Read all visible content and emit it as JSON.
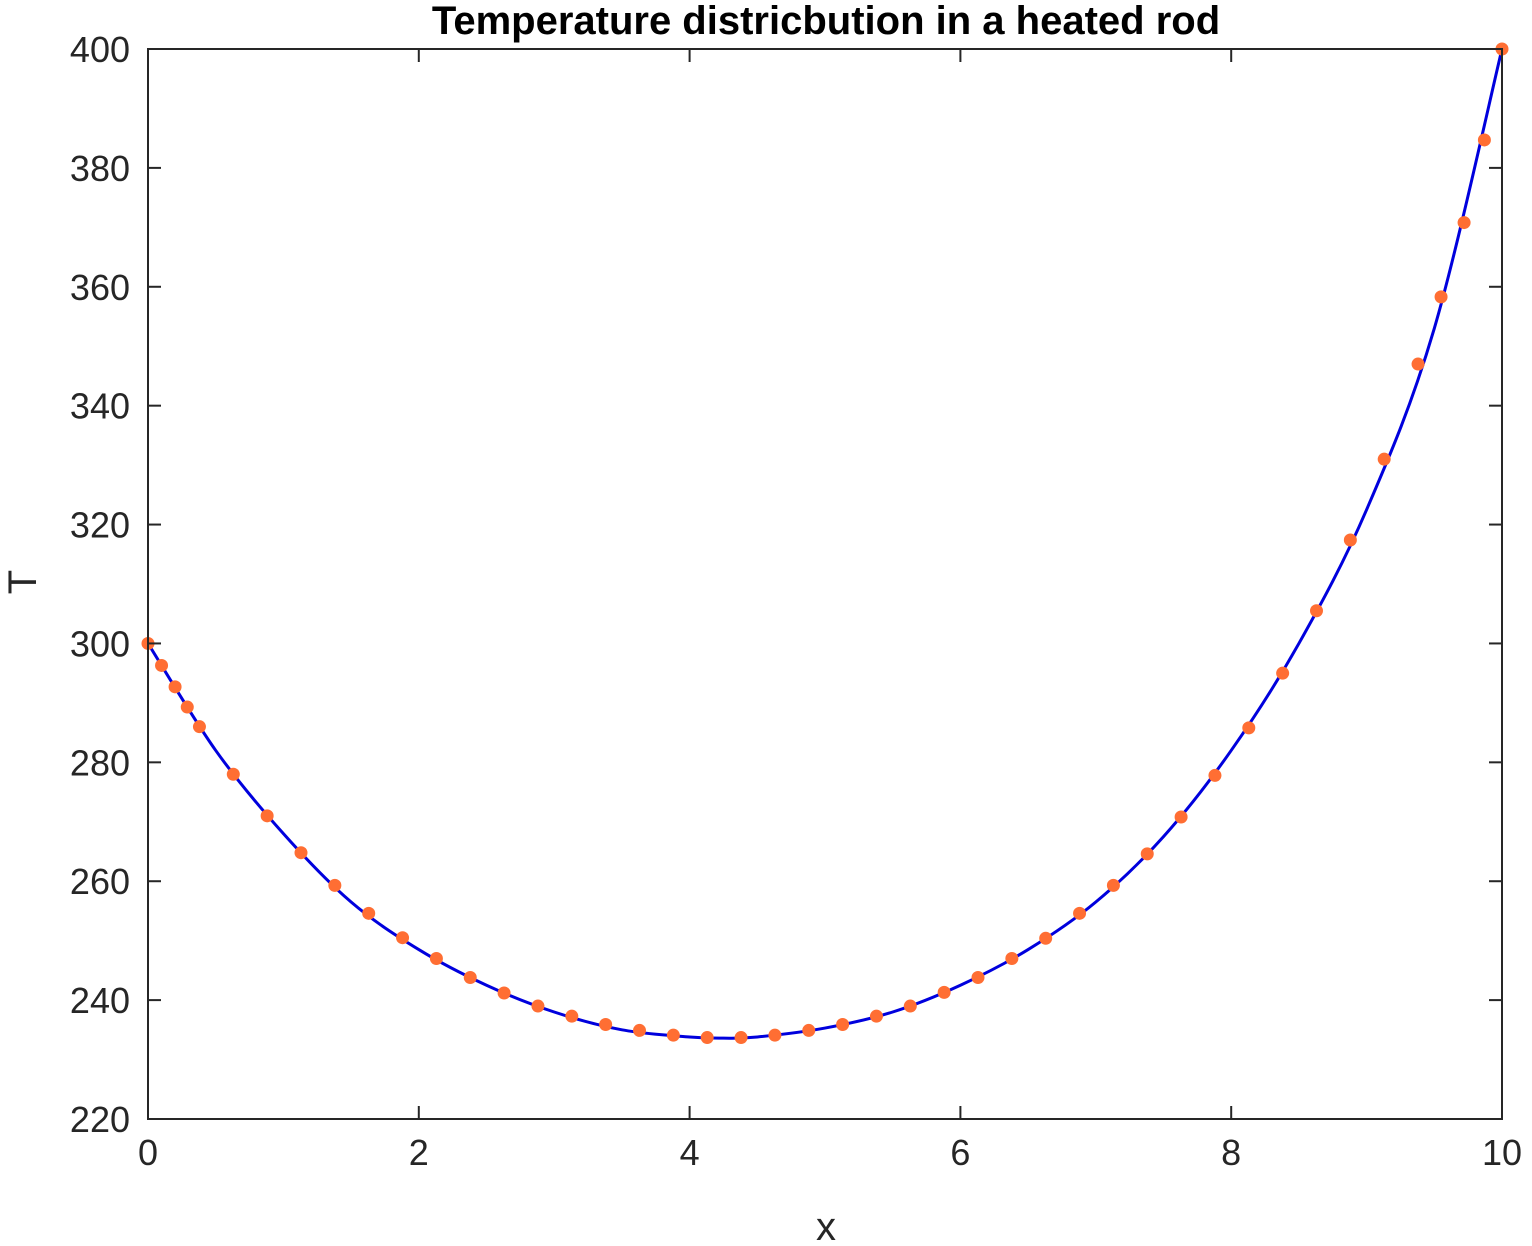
{
  "chart_data": {
    "type": "line",
    "title": "Temperature districbution in a heated rod",
    "xlabel": "x",
    "ylabel": "T",
    "xlim": [
      0,
      10
    ],
    "ylim": [
      220,
      400
    ],
    "xticks": [
      0,
      2,
      4,
      6,
      8,
      10
    ],
    "yticks": [
      220,
      240,
      260,
      280,
      300,
      320,
      340,
      360,
      380,
      400
    ],
    "grid": false,
    "colors": {
      "line": "#0000dd",
      "markers": "#ff6e33",
      "axes": "#262626"
    },
    "series": [
      {
        "mode": "line",
        "x": [
          0,
          0.5,
          1,
          1.5,
          2,
          2.5,
          3,
          3.5,
          4,
          4.25,
          4.5,
          5,
          5.5,
          6,
          6.5,
          7,
          7.5,
          8,
          8.5,
          9,
          9.5,
          10
        ],
        "y": [
          300,
          282,
          268,
          256.5,
          248.5,
          242.5,
          238,
          235,
          233.8,
          233.6,
          233.8,
          235.3,
          238,
          242.5,
          248.5,
          256.5,
          267.5,
          282,
          300,
          322.5,
          353,
          400
        ]
      },
      {
        "mode": "markers",
        "x": [
          0,
          0.1,
          0.2,
          0.29,
          0.38,
          0.63,
          0.88,
          1.13,
          1.38,
          1.63,
          1.88,
          2.13,
          2.38,
          2.63,
          2.88,
          3.13,
          3.38,
          3.63,
          3.88,
          4.13,
          4.38,
          4.63,
          4.88,
          5.13,
          5.38,
          5.63,
          5.88,
          6.13,
          6.38,
          6.63,
          6.88,
          7.13,
          7.38,
          7.63,
          7.88,
          8.13,
          8.38,
          8.63,
          8.88,
          9.13,
          9.38,
          9.55,
          9.72,
          9.87,
          10
        ],
        "y": [
          300,
          296.3,
          292.7,
          289.3,
          286,
          278,
          271,
          264.8,
          259.3,
          254.6,
          250.5,
          247,
          243.8,
          241.2,
          239,
          237.3,
          235.9,
          234.9,
          234.1,
          233.7,
          233.7,
          234.1,
          234.9,
          235.9,
          237.3,
          239,
          241.3,
          243.8,
          247,
          250.4,
          254.6,
          259.3,
          264.6,
          270.8,
          277.8,
          285.8,
          295,
          305.5,
          317.4,
          331,
          347,
          358.3,
          370.8,
          384.7,
          400
        ]
      }
    ]
  }
}
